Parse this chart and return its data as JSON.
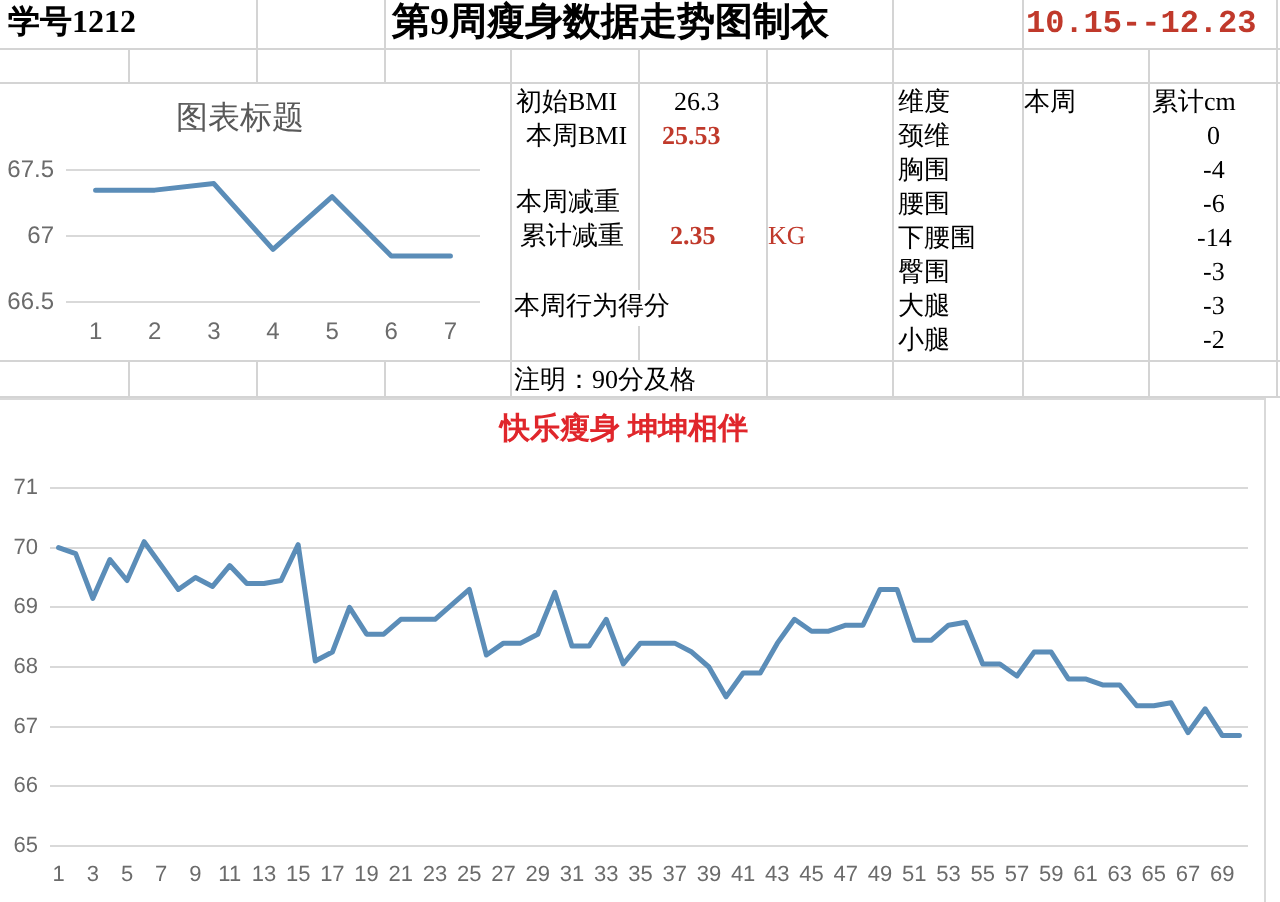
{
  "chart_data": [
    {
      "type": "other",
      "title": "第9周瘦身数据走势图制衣",
      "annotations": [
        "学号1212",
        "10.15--12.23",
        "初始BMI",
        "26.3",
        "本周BMI",
        "25.53",
        "本周减重",
        "累计减重",
        "2.35",
        "KG",
        "本周行为得分",
        "注明：90分及格",
        "维度",
        "本周",
        "累计cm",
        "颈维",
        "0",
        "胸围",
        "-4",
        "腰围",
        "-6",
        "下腰围",
        "-14",
        "臀围",
        "-3",
        "大腿",
        "-3",
        "小腿",
        "-2"
      ]
    },
    {
      "type": "line",
      "title": "图表标题",
      "categories": [
        "1",
        "2",
        "3",
        "4",
        "5",
        "6",
        "7"
      ],
      "values": [
        67.35,
        67.35,
        67.4,
        66.9,
        67.3,
        66.85,
        66.85
      ],
      "color": "#5b8db8",
      "ylim": [
        66.5,
        67.5
      ],
      "yticks": [
        66.5,
        67,
        67.5
      ],
      "grid": "y"
    },
    {
      "type": "line",
      "title": "快乐瘦身 坤坤相伴",
      "x": [
        1,
        2,
        3,
        4,
        5,
        6,
        7,
        8,
        9,
        10,
        11,
        12,
        13,
        14,
        15,
        16,
        17,
        18,
        19,
        20,
        21,
        22,
        23,
        24,
        25,
        26,
        27,
        28,
        29,
        30,
        31,
        32,
        33,
        34,
        35,
        36,
        37,
        38,
        39,
        40,
        41,
        42,
        43,
        44,
        45,
        46,
        47,
        48,
        49,
        50,
        51,
        52,
        53,
        54,
        55,
        56,
        57,
        58,
        59,
        60,
        61,
        62,
        63,
        64,
        65,
        66,
        67,
        68,
        69,
        70
      ],
      "values": [
        70.0,
        69.9,
        69.15,
        69.8,
        69.45,
        70.1,
        69.7,
        69.3,
        69.5,
        69.35,
        69.7,
        69.4,
        69.4,
        69.45,
        70.05,
        68.1,
        68.25,
        69.0,
        68.55,
        68.55,
        68.8,
        68.8,
        68.8,
        69.05,
        69.3,
        68.2,
        68.4,
        68.4,
        68.55,
        69.25,
        68.35,
        68.35,
        68.8,
        68.05,
        68.4,
        68.4,
        68.4,
        68.25,
        68.0,
        67.5,
        67.9,
        67.9,
        68.4,
        68.8,
        68.6,
        68.6,
        68.7,
        68.7,
        69.3,
        69.3,
        68.45,
        68.45,
        68.7,
        68.75,
        68.05,
        68.05,
        67.85,
        68.25,
        68.25,
        67.8,
        67.8,
        67.7,
        67.7,
        67.35,
        67.35,
        67.4,
        66.9,
        67.3,
        66.85,
        66.85
      ],
      "color": "#5b8db8",
      "xlim": [
        0.5,
        70.5
      ],
      "xticks": [
        1,
        3,
        5,
        7,
        9,
        11,
        13,
        15,
        17,
        19,
        21,
        23,
        25,
        27,
        29,
        31,
        33,
        35,
        37,
        39,
        41,
        43,
        45,
        47,
        49,
        51,
        53,
        55,
        57,
        59,
        61,
        63,
        65,
        67,
        69
      ],
      "ylim": [
        65,
        71
      ],
      "yticks": [
        65,
        66,
        67,
        68,
        69,
        70,
        71
      ],
      "grid": "y"
    }
  ]
}
